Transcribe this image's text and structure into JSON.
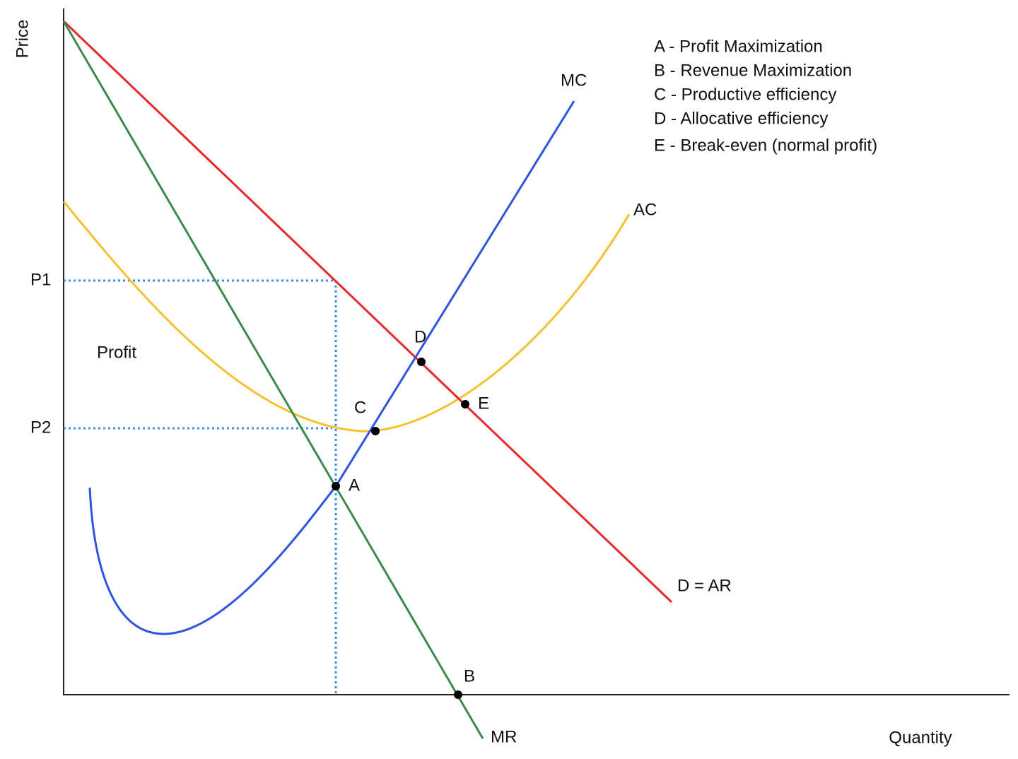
{
  "axes": {
    "y_label": "Price",
    "x_label": "Quantity"
  },
  "curves": {
    "mc": "MC",
    "ac": "AC",
    "demand": "D = AR",
    "mr": "MR"
  },
  "prices": {
    "p1": "P1",
    "p2": "P2"
  },
  "region": "Profit",
  "points": {
    "a": "A",
    "b": "B",
    "c": "C",
    "d": "D",
    "e": "E"
  },
  "legend": [
    "A - Profit Maximization",
    "B - Revenue Maximization",
    "C - Productive efficiency",
    "D - Allocative efficiency",
    "E - Break-even (normal profit)"
  ]
}
